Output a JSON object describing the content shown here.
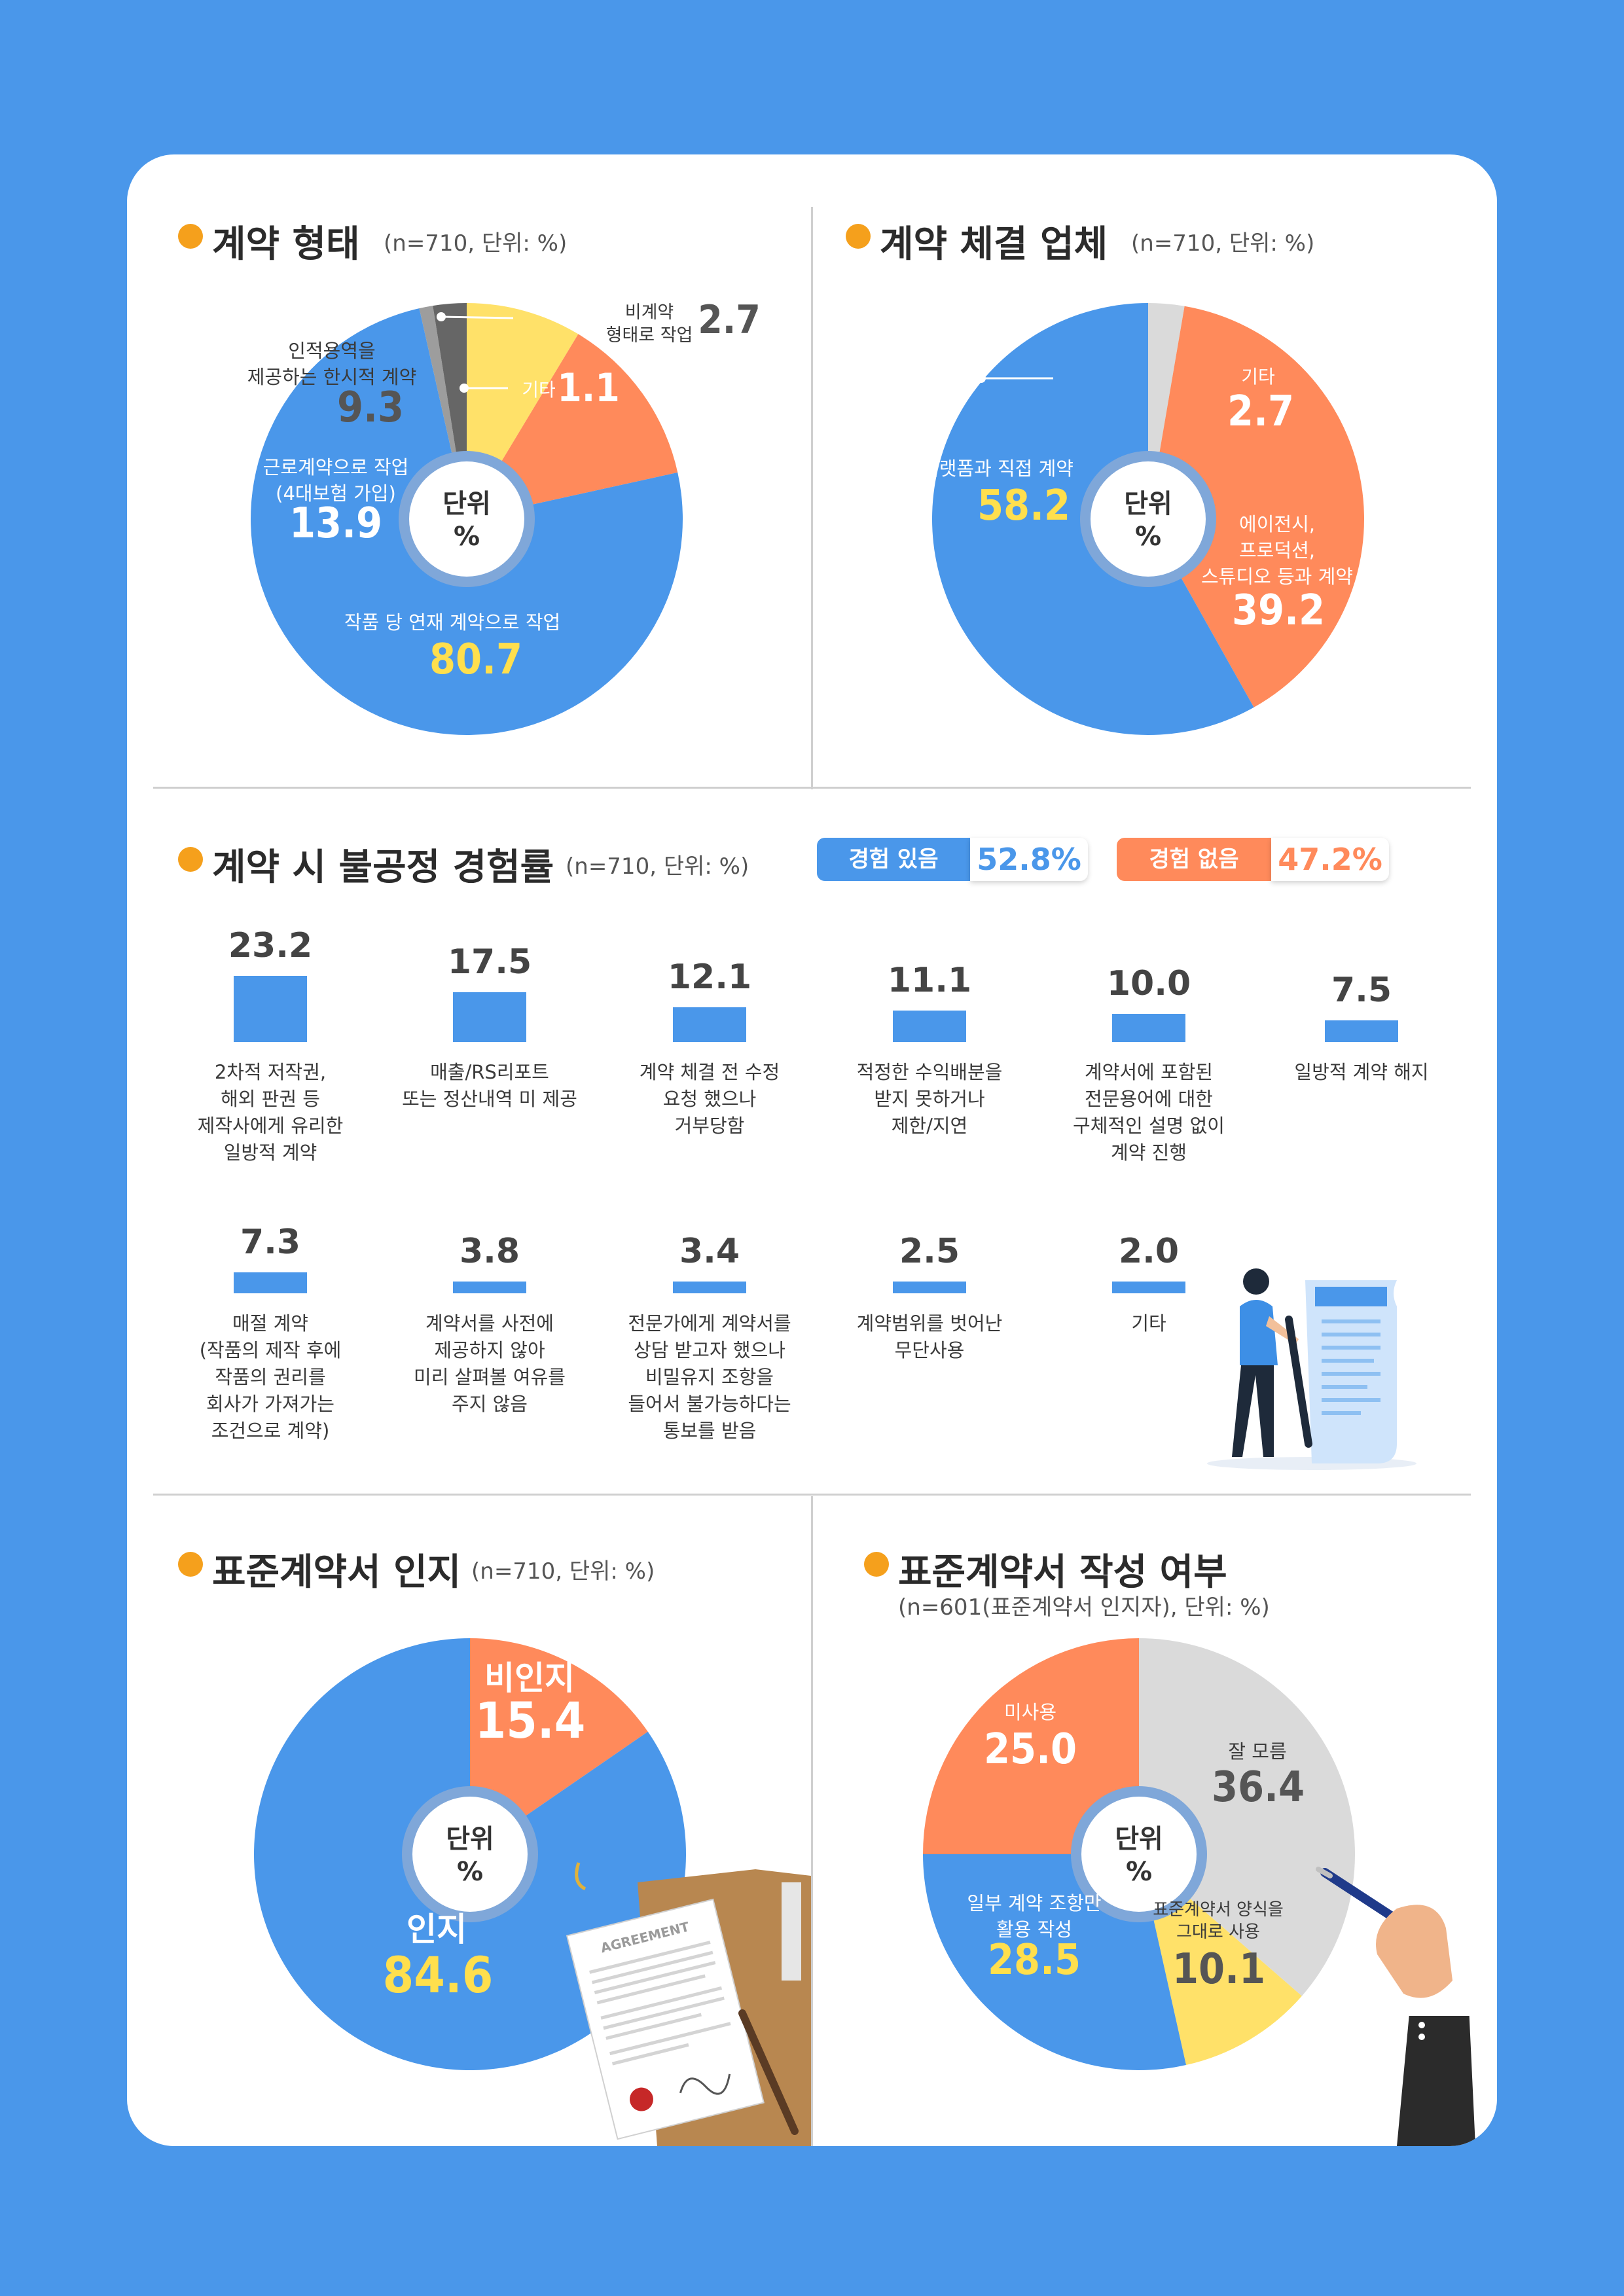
{
  "colors": {
    "blue": "#4a97ea",
    "orange": "#ff8a5b",
    "yellow": "#ffe169",
    "darkgray": "#666666",
    "midgray": "#9d9d9d",
    "lightgray": "#dadada"
  },
  "center_label": "단위\n%",
  "section1": {
    "title": "계약 형태",
    "subtitle": "(n=710, 단위: %)",
    "labels": {
      "serial": "작품 당 연재 계약으로 작업",
      "labor": "근로계약으로 작업\n(4대보험 가입)",
      "service": "인적용역을\n제공하는 한시적 계약",
      "noncontract": "비계약\n형태로 작업",
      "etc": "기타"
    }
  },
  "section2": {
    "title": "계약 체결 업체",
    "subtitle": "(n=710, 단위: %)",
    "labels": {
      "platform": "플랫폼과 직접 계약",
      "agency": "에이전시,\n프로덕션,\n스튜디오 등과 계약",
      "etc": "기타"
    }
  },
  "section3": {
    "title": "계약 시 불공정 경험률",
    "subtitle": "(n=710, 단위: %)",
    "badge_yes_label": "경험 있음",
    "badge_yes_value": "52.8%",
    "badge_no_label": "경험 없음",
    "badge_no_value": "47.2%"
  },
  "section4": {
    "title": "표준계약서 인지",
    "subtitle": "(n=710, 단위: %)",
    "labels": {
      "aware": "인지",
      "unaware": "비인지"
    },
    "doc_text": "AGREEMENT"
  },
  "section5": {
    "title": "표준계약서 작성 여부",
    "subtitle": "(n=601(표준계약서 인지자), 단위: %)",
    "labels": {
      "unused": "미사용",
      "unknown": "잘 모름",
      "asis": "표준계약서 양식을\n그대로 사용",
      "partial": "일부 계약 조항만\n활용 작성"
    }
  },
  "chart_data": [
    {
      "type": "pie",
      "title": "계약 형태",
      "categories": [
        "작품 당 연재 계약으로 작업",
        "근로계약으로 작업\n(4대보험 가입)",
        "인적용역을\n제공하는 한시적 계약",
        "비계약\n형태로 작업",
        "기타"
      ],
      "values": [
        80.7,
        13.9,
        9.3,
        2.7,
        1.1
      ],
      "value_labels": [
        "80.7",
        "13.9",
        "9.3",
        "2.7",
        "1.1"
      ]
    },
    {
      "type": "pie",
      "title": "계약 체결 업체",
      "categories": [
        "플랫폼과 직접 계약",
        "에이전시,\n프로덕션,\n스튜디오 등과 계약",
        "기타"
      ],
      "values": [
        58.2,
        39.2,
        2.7
      ],
      "value_labels": [
        "58.2",
        "39.2",
        "2.7"
      ]
    },
    {
      "type": "bar",
      "title": "계약 시 불공정 경험률",
      "categories": [
        "2차적 저작권,\n해외 판권 등\n제작사에게 유리한\n일방적 계약",
        "매출/RS리포트\n또는 정산내역 미 제공",
        "계약 체결 전 수정\n요청 했으나\n거부당함",
        "적정한 수익배분을\n받지 못하거나\n제한/지연",
        "계약서에 포함된\n전문용어에 대한\n구체적인 설명 없이\n계약 진행",
        "일방적 계약 해지",
        "매절 계약\n(작품의 제작 후에\n작품의 권리를\n회사가 가져가는\n조건으로 계약)",
        "계약서를 사전에\n제공하지 않아\n미리 살펴볼 여유를\n주지 않음",
        "전문가에게 계약서를\n상담 받고자 했으나\n비밀유지 조항을\n들어서 불가능하다는\n통보를 받음",
        "계약범위를 벗어난\n무단사용",
        "기타"
      ],
      "values": [
        23.2,
        17.5,
        12.1,
        11.1,
        10.0,
        7.5,
        7.3,
        3.8,
        3.4,
        2.5,
        2.0
      ],
      "value_labels": [
        "23.2",
        "17.5",
        "12.1",
        "11.1",
        "10.0",
        "7.5",
        "7.3",
        "3.8",
        "3.4",
        "2.5",
        "2.0"
      ]
    },
    {
      "type": "pie",
      "title": "표준계약서 인지",
      "categories": [
        "인지",
        "비인지"
      ],
      "values": [
        84.6,
        15.4
      ],
      "value_labels": [
        "84.6",
        "15.4"
      ]
    },
    {
      "type": "pie",
      "title": "표준계약서 작성 여부",
      "categories": [
        "잘 모름",
        "표준계약서 양식을\n그대로 사용",
        "일부 계약 조항만\n활용 작성",
        "미사용"
      ],
      "values": [
        36.4,
        10.1,
        28.5,
        25.0
      ],
      "value_labels": [
        "36.4",
        "10.1",
        "28.5",
        "25.0"
      ]
    }
  ]
}
